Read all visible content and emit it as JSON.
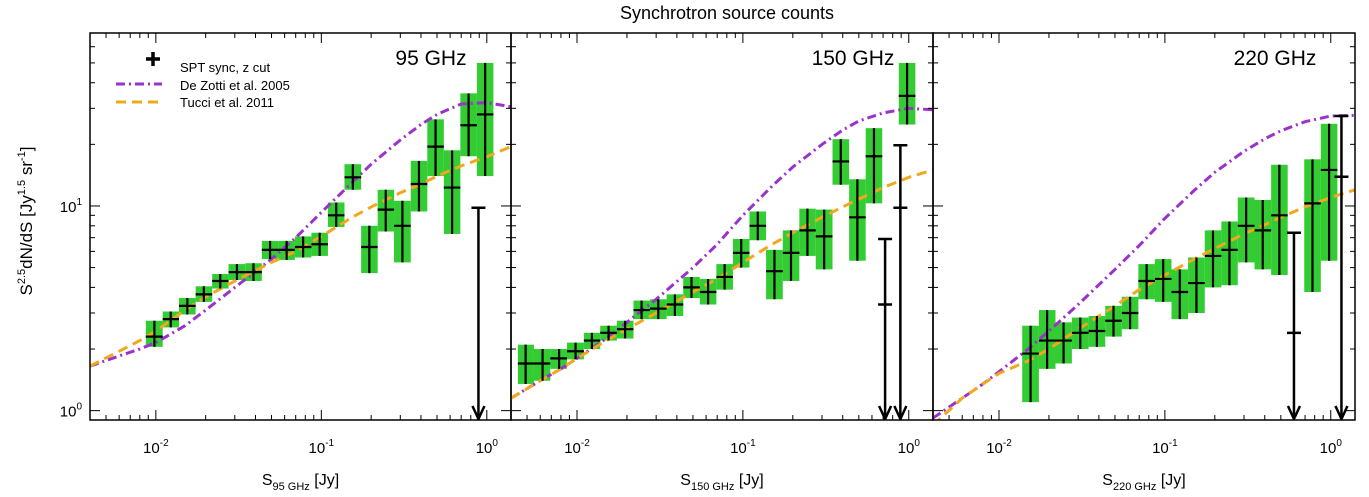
{
  "figure": {
    "title": "Synchrotron source counts",
    "ylabel": "S^2.5dN/dS [Jy^1.5 sr^-1]",
    "ylabel_parts": {
      "main": "S",
      "sup1": "2.5",
      "rest": "dN/dS [Jy",
      "sup2": "1.5",
      "mid": " sr",
      "sup3": "-1",
      "end": "]"
    },
    "colors": {
      "data_band": "#33cc33",
      "de_zotti": "#9933cc",
      "tucci": "#f2a81d",
      "data_marker": "#000000"
    },
    "legend": {
      "placement": "top-left",
      "entries": [
        {
          "label": "SPT sync, z cut",
          "style": "black-cross"
        },
        {
          "label": "De Zotti et al. 2005",
          "style": "purple-dash-dot"
        },
        {
          "label": "Tucci et al. 2011",
          "style": "orange-dashed"
        }
      ]
    },
    "y_ticks": [
      "10^0",
      "10^1"
    ],
    "x_ticks": [
      "10^-2",
      "10^-1",
      "10^0"
    ]
  },
  "chart_data": [
    {
      "type": "scatter",
      "panel_label": "95 GHz",
      "xlabel": "S_95 GHz [Jy]",
      "xlabel_sub": "95 GHz",
      "xscale": "log",
      "yscale": "log",
      "xlim": [
        0.004,
        1.4
      ],
      "ylim": [
        0.9,
        70
      ],
      "series": [
        {
          "name": "SPT sync, z cut",
          "points": [
            {
              "x": 0.0098,
              "y": 2.3,
              "lo": 2.05,
              "hi": 2.75,
              "xlo": 0.0087,
              "xhi": 0.011
            },
            {
              "x": 0.0123,
              "y": 2.8,
              "lo": 2.55,
              "hi": 3.05,
              "xlo": 0.011,
              "xhi": 0.0138
            },
            {
              "x": 0.0155,
              "y": 3.25,
              "lo": 2.95,
              "hi": 3.55,
              "xlo": 0.0138,
              "xhi": 0.0174
            },
            {
              "x": 0.0195,
              "y": 3.7,
              "lo": 3.4,
              "hi": 4.05,
              "xlo": 0.0174,
              "xhi": 0.0219
            },
            {
              "x": 0.0245,
              "y": 4.3,
              "lo": 3.95,
              "hi": 4.65,
              "xlo": 0.0219,
              "xhi": 0.0275
            },
            {
              "x": 0.0309,
              "y": 4.75,
              "lo": 4.35,
              "hi": 5.2,
              "xlo": 0.0275,
              "xhi": 0.0347
            },
            {
              "x": 0.0389,
              "y": 4.75,
              "lo": 4.3,
              "hi": 5.25,
              "xlo": 0.0347,
              "xhi": 0.0437
            },
            {
              "x": 0.049,
              "y": 6.1,
              "lo": 5.5,
              "hi": 6.75,
              "xlo": 0.0437,
              "xhi": 0.055
            },
            {
              "x": 0.0617,
              "y": 6.1,
              "lo": 5.45,
              "hi": 6.75,
              "xlo": 0.055,
              "xhi": 0.0692
            },
            {
              "x": 0.0776,
              "y": 6.3,
              "lo": 5.6,
              "hi": 7.1,
              "xlo": 0.0692,
              "xhi": 0.0871
            },
            {
              "x": 0.0977,
              "y": 6.5,
              "lo": 5.7,
              "hi": 7.4,
              "xlo": 0.0871,
              "xhi": 0.1096
            },
            {
              "x": 0.123,
              "y": 9.0,
              "lo": 7.9,
              "hi": 10.4,
              "xlo": 0.1096,
              "xhi": 0.138
            },
            {
              "x": 0.155,
              "y": 13.8,
              "lo": 12.0,
              "hi": 16.0,
              "xlo": 0.138,
              "xhi": 0.174
            },
            {
              "x": 0.195,
              "y": 6.3,
              "lo": 4.7,
              "hi": 8.0,
              "xlo": 0.174,
              "xhi": 0.219
            },
            {
              "x": 0.245,
              "y": 9.6,
              "lo": 7.5,
              "hi": 12.0,
              "xlo": 0.219,
              "xhi": 0.275
            },
            {
              "x": 0.309,
              "y": 8.0,
              "lo": 5.3,
              "hi": 10.6,
              "xlo": 0.275,
              "xhi": 0.347
            },
            {
              "x": 0.389,
              "y": 12.8,
              "lo": 9.4,
              "hi": 16.6,
              "xlo": 0.347,
              "xhi": 0.437
            },
            {
              "x": 0.49,
              "y": 19.5,
              "lo": 14.0,
              "hi": 26.5,
              "xlo": 0.437,
              "xhi": 0.55
            },
            {
              "x": 0.617,
              "y": 12.3,
              "lo": 7.3,
              "hi": 18.7,
              "xlo": 0.55,
              "xhi": 0.692
            },
            {
              "x": 0.776,
              "y": 24.8,
              "lo": 17.5,
              "hi": 35.5,
              "xlo": 0.692,
              "xhi": 0.871
            },
            {
              "x": 0.977,
              "y": 28.0,
              "lo": 14.0,
              "hi": 50.0,
              "xlo": 0.871,
              "xhi": 1.096
            }
          ],
          "upper_limits": [
            {
              "x": 0.89,
              "y": 9.8
            }
          ]
        },
        {
          "name": "De Zotti et al. 2005",
          "x": [
            0.004,
            0.006,
            0.008,
            0.01,
            0.015,
            0.02,
            0.03,
            0.05,
            0.07,
            0.1,
            0.15,
            0.2,
            0.3,
            0.4,
            0.5,
            0.7,
            1.0,
            1.4
          ],
          "y": [
            1.65,
            1.85,
            2.0,
            2.15,
            2.6,
            3.1,
            4.0,
            5.5,
            7.0,
            9.3,
            12.8,
            16.0,
            21.0,
            25.0,
            28.0,
            31.5,
            32.0,
            30.5
          ]
        },
        {
          "name": "Tucci et al. 2011",
          "x": [
            0.004,
            0.006,
            0.008,
            0.01,
            0.015,
            0.02,
            0.03,
            0.05,
            0.07,
            0.1,
            0.15,
            0.2,
            0.3,
            0.4,
            0.5,
            0.7,
            1.0,
            1.4
          ],
          "y": [
            1.65,
            1.95,
            2.2,
            2.45,
            3.1,
            3.6,
            4.3,
            5.3,
            6.0,
            7.1,
            8.7,
            9.9,
            11.6,
            12.8,
            14.0,
            15.7,
            17.4,
            19.5
          ]
        }
      ]
    },
    {
      "type": "scatter",
      "panel_label": "150 GHz",
      "xlabel": "S_150 GHz [Jy]",
      "xlabel_sub": "150 GHz",
      "xscale": "log",
      "yscale": "log",
      "xlim": [
        0.004,
        1.4
      ],
      "ylim": [
        0.9,
        70
      ],
      "series": [
        {
          "name": "SPT sync, z cut",
          "points": [
            {
              "x": 0.0049,
              "y": 1.7,
              "lo": 1.35,
              "hi": 2.1,
              "xlo": 0.0044,
              "xhi": 0.0055
            },
            {
              "x": 0.0062,
              "y": 1.7,
              "lo": 1.4,
              "hi": 2.0,
              "xlo": 0.0055,
              "xhi": 0.0069
            },
            {
              "x": 0.0078,
              "y": 1.8,
              "lo": 1.6,
              "hi": 2.0,
              "xlo": 0.0069,
              "xhi": 0.0087
            },
            {
              "x": 0.0098,
              "y": 1.95,
              "lo": 1.78,
              "hi": 2.15,
              "xlo": 0.0087,
              "xhi": 0.011
            },
            {
              "x": 0.0123,
              "y": 2.2,
              "lo": 2.0,
              "hi": 2.4,
              "xlo": 0.011,
              "xhi": 0.0138
            },
            {
              "x": 0.0155,
              "y": 2.4,
              "lo": 2.2,
              "hi": 2.6,
              "xlo": 0.0138,
              "xhi": 0.0174
            },
            {
              "x": 0.0195,
              "y": 2.5,
              "lo": 2.25,
              "hi": 2.75,
              "xlo": 0.0174,
              "xhi": 0.0219
            },
            {
              "x": 0.0245,
              "y": 3.1,
              "lo": 2.8,
              "hi": 3.45,
              "xlo": 0.0219,
              "xhi": 0.0275
            },
            {
              "x": 0.0309,
              "y": 3.15,
              "lo": 2.8,
              "hi": 3.5,
              "xlo": 0.0275,
              "xhi": 0.0347
            },
            {
              "x": 0.0389,
              "y": 3.3,
              "lo": 2.9,
              "hi": 3.7,
              "xlo": 0.0347,
              "xhi": 0.0437
            },
            {
              "x": 0.049,
              "y": 4.0,
              "lo": 3.55,
              "hi": 4.5,
              "xlo": 0.0437,
              "xhi": 0.055
            },
            {
              "x": 0.0617,
              "y": 3.8,
              "lo": 3.3,
              "hi": 4.4,
              "xlo": 0.055,
              "xhi": 0.0692
            },
            {
              "x": 0.0776,
              "y": 4.5,
              "lo": 3.9,
              "hi": 5.2,
              "xlo": 0.0692,
              "xhi": 0.0871
            },
            {
              "x": 0.0977,
              "y": 5.9,
              "lo": 5.0,
              "hi": 6.9,
              "xlo": 0.0871,
              "xhi": 0.1096
            },
            {
              "x": 0.123,
              "y": 8.0,
              "lo": 6.8,
              "hi": 9.4,
              "xlo": 0.1096,
              "xhi": 0.138
            },
            {
              "x": 0.155,
              "y": 4.8,
              "lo": 3.5,
              "hi": 6.1,
              "xlo": 0.138,
              "xhi": 0.174
            },
            {
              "x": 0.195,
              "y": 5.9,
              "lo": 4.3,
              "hi": 7.6,
              "xlo": 0.174,
              "xhi": 0.219
            },
            {
              "x": 0.245,
              "y": 7.6,
              "lo": 5.7,
              "hi": 9.7,
              "xlo": 0.219,
              "xhi": 0.275
            },
            {
              "x": 0.309,
              "y": 7.1,
              "lo": 4.9,
              "hi": 9.6,
              "xlo": 0.275,
              "xhi": 0.347
            },
            {
              "x": 0.389,
              "y": 16.5,
              "lo": 12.7,
              "hi": 21.2,
              "xlo": 0.347,
              "xhi": 0.437
            },
            {
              "x": 0.49,
              "y": 8.8,
              "lo": 5.4,
              "hi": 13.5,
              "xlo": 0.437,
              "xhi": 0.55
            },
            {
              "x": 0.617,
              "y": 17.5,
              "lo": 10.3,
              "hi": 24.0,
              "xlo": 0.55,
              "xhi": 0.692
            },
            {
              "x": 0.977,
              "y": 34.5,
              "lo": 25.0,
              "hi": 50.0,
              "xlo": 0.871,
              "xhi": 1.096
            }
          ],
          "upper_limits": [
            {
              "x": 0.72,
              "y": 3.3,
              "top": 6.9
            },
            {
              "x": 0.89,
              "y": 9.8,
              "top": 19.8
            }
          ]
        },
        {
          "name": "De Zotti et al. 2005",
          "x": [
            0.004,
            0.006,
            0.008,
            0.01,
            0.015,
            0.02,
            0.03,
            0.05,
            0.07,
            0.1,
            0.15,
            0.2,
            0.3,
            0.4,
            0.5,
            0.7,
            1.0,
            1.4
          ],
          "y": [
            1.15,
            1.4,
            1.6,
            1.8,
            2.25,
            2.7,
            3.5,
            5.0,
            6.5,
            9.0,
            12.5,
            15.5,
            20.0,
            23.5,
            26.0,
            28.5,
            30.0,
            29.5
          ]
        },
        {
          "name": "Tucci et al. 2011",
          "x": [
            0.004,
            0.006,
            0.008,
            0.01,
            0.015,
            0.02,
            0.03,
            0.05,
            0.07,
            0.1,
            0.15,
            0.2,
            0.3,
            0.4,
            0.5,
            0.7,
            1.0,
            1.4
          ],
          "y": [
            1.15,
            1.4,
            1.6,
            1.8,
            2.2,
            2.5,
            3.0,
            3.8,
            4.4,
            5.3,
            6.5,
            7.4,
            8.8,
            9.9,
            10.8,
            12.3,
            13.8,
            15.0
          ]
        }
      ]
    },
    {
      "type": "scatter",
      "panel_label": "220 GHz",
      "xlabel": "S_220 GHz [Jy]",
      "xlabel_sub": "220 GHz",
      "xscale": "log",
      "yscale": "log",
      "xlim": [
        0.004,
        1.4
      ],
      "ylim": [
        0.9,
        70
      ],
      "series": [
        {
          "name": "SPT sync, z cut",
          "points": [
            {
              "x": 0.0155,
              "y": 1.9,
              "lo": 1.1,
              "hi": 2.6,
              "xlo": 0.0138,
              "xhi": 0.0174
            },
            {
              "x": 0.0195,
              "y": 2.2,
              "lo": 1.6,
              "hi": 3.1,
              "xlo": 0.0174,
              "xhi": 0.0219
            },
            {
              "x": 0.0245,
              "y": 2.2,
              "lo": 1.7,
              "hi": 2.7,
              "xlo": 0.0219,
              "xhi": 0.0275
            },
            {
              "x": 0.0309,
              "y": 2.4,
              "lo": 2.0,
              "hi": 2.85,
              "xlo": 0.0275,
              "xhi": 0.0347
            },
            {
              "x": 0.0389,
              "y": 2.45,
              "lo": 2.05,
              "hi": 2.9,
              "xlo": 0.0347,
              "xhi": 0.0437
            },
            {
              "x": 0.049,
              "y": 2.75,
              "lo": 2.3,
              "hi": 3.25,
              "xlo": 0.0437,
              "xhi": 0.055
            },
            {
              "x": 0.0617,
              "y": 3.0,
              "lo": 2.5,
              "hi": 3.6,
              "xlo": 0.055,
              "xhi": 0.0692
            },
            {
              "x": 0.0776,
              "y": 4.3,
              "lo": 3.5,
              "hi": 5.2,
              "xlo": 0.0692,
              "xhi": 0.0871
            },
            {
              "x": 0.0977,
              "y": 4.4,
              "lo": 3.4,
              "hi": 5.5,
              "xlo": 0.0871,
              "xhi": 0.1096
            },
            {
              "x": 0.123,
              "y": 3.8,
              "lo": 2.8,
              "hi": 4.9,
              "xlo": 0.1096,
              "xhi": 0.138
            },
            {
              "x": 0.155,
              "y": 4.2,
              "lo": 3.0,
              "hi": 5.6,
              "xlo": 0.138,
              "xhi": 0.174
            },
            {
              "x": 0.195,
              "y": 5.7,
              "lo": 4.0,
              "hi": 7.6,
              "xlo": 0.174,
              "xhi": 0.219
            },
            {
              "x": 0.245,
              "y": 6.1,
              "lo": 4.1,
              "hi": 8.4,
              "xlo": 0.219,
              "xhi": 0.275
            },
            {
              "x": 0.309,
              "y": 8.0,
              "lo": 5.3,
              "hi": 11.0,
              "xlo": 0.275,
              "xhi": 0.347
            },
            {
              "x": 0.389,
              "y": 7.6,
              "lo": 4.9,
              "hi": 10.7,
              "xlo": 0.347,
              "xhi": 0.437
            },
            {
              "x": 0.49,
              "y": 9.0,
              "lo": 4.6,
              "hi": 15.9,
              "xlo": 0.437,
              "xhi": 0.55
            },
            {
              "x": 0.776,
              "y": 10.3,
              "lo": 3.8,
              "hi": 16.9,
              "xlo": 0.692,
              "xhi": 0.871
            },
            {
              "x": 0.977,
              "y": 15.0,
              "lo": 5.4,
              "hi": 25.2,
              "xlo": 0.871,
              "xhi": 1.096
            }
          ],
          "upper_limits": [
            {
              "x": 0.6,
              "y": 2.4,
              "top": 7.4
            },
            {
              "x": 1.16,
              "y": 13.9,
              "top": 27.5
            }
          ]
        },
        {
          "name": "De Zotti et al. 2005",
          "x": [
            0.004,
            0.006,
            0.008,
            0.01,
            0.015,
            0.02,
            0.03,
            0.05,
            0.07,
            0.1,
            0.15,
            0.2,
            0.3,
            0.4,
            0.5,
            0.7,
            1.0,
            1.4
          ],
          "y": [
            0.92,
            1.15,
            1.35,
            1.55,
            2.0,
            2.45,
            3.3,
            4.9,
            6.4,
            8.7,
            11.9,
            14.6,
            18.5,
            21.3,
            23.3,
            25.8,
            27.5,
            27.7
          ]
        },
        {
          "name": "Tucci et al. 2011",
          "x": [
            0.004,
            0.006,
            0.008,
            0.01,
            0.015,
            0.02,
            0.03,
            0.05,
            0.07,
            0.1,
            0.15,
            0.2,
            0.3,
            0.4,
            0.5,
            0.7,
            1.0,
            1.4
          ],
          "y": [
            0.85,
            1.15,
            1.35,
            1.52,
            1.75,
            2.0,
            2.5,
            3.25,
            3.9,
            4.6,
            5.5,
            6.2,
            7.3,
            8.1,
            8.8,
            9.9,
            11.0,
            12.0
          ]
        }
      ]
    }
  ]
}
